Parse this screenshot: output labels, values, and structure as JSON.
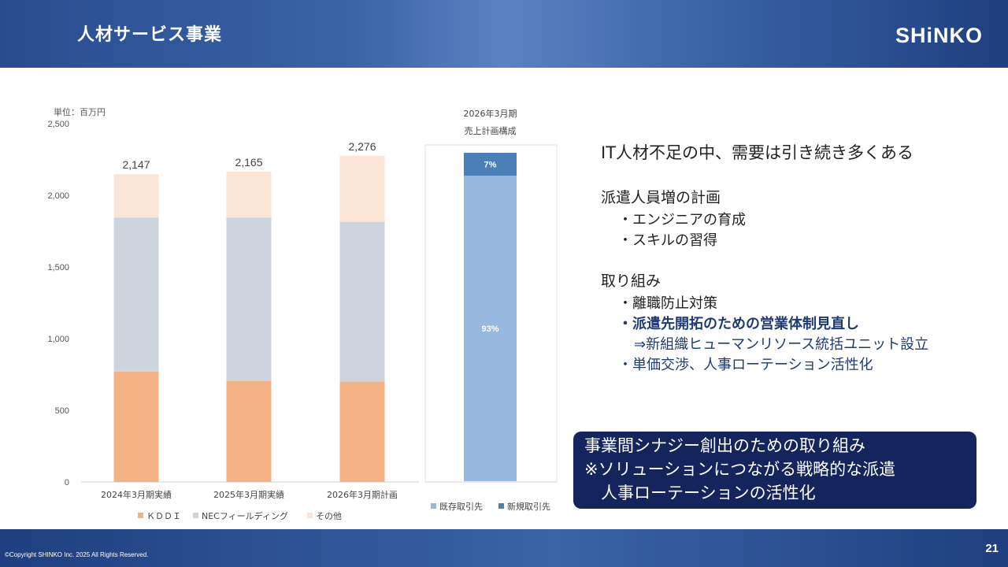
{
  "header": {
    "title": "人材サービス事業",
    "logo": "SHiNKO"
  },
  "footer": {
    "copyright": "©Copyright SHINKO Inc. 2025 All Rights Reserved.",
    "page_number": "21"
  },
  "colors": {
    "kddi": "#f4b183",
    "nec": "#cdd4de",
    "other": "#fbe5d6",
    "existing": "#97b9e0",
    "new": "#4b7fb8"
  },
  "chart_data": [
    {
      "type": "bar",
      "stacked": true,
      "unit_label": "単位：百万円",
      "categories": [
        "2024年3月期実績",
        "2025年3月期実績",
        "2026年3月期計画"
      ],
      "series": [
        {
          "name": "ＫＤＤＩ",
          "values": [
            770,
            705,
            700
          ]
        },
        {
          "name": "NECフィールディング",
          "values": [
            1075,
            1140,
            1115
          ]
        },
        {
          "name": "その他",
          "values": [
            302,
            320,
            461
          ]
        }
      ],
      "totals": [
        2147,
        2165,
        2276
      ],
      "total_labels": [
        "2,147",
        "2,165",
        "2,276"
      ],
      "yticks": [
        "0",
        "500",
        "1,000",
        "1,500",
        "2,000",
        "2,500"
      ],
      "ylim": [
        0,
        2500
      ],
      "legend_position": "bottom"
    },
    {
      "type": "bar",
      "stacked": true,
      "title": [
        "2026年3月期",
        "売上計画構成"
      ],
      "categories": [
        "2026年3月期"
      ],
      "series": [
        {
          "name": "既存取引先",
          "values": [
            93
          ],
          "label": "93%"
        },
        {
          "name": "新規取引先",
          "values": [
            7
          ],
          "label": "7%"
        }
      ],
      "legend_position": "bottom"
    }
  ],
  "right": {
    "headline": "IT人材不足の中、需要は引き続き多くある",
    "plan_heading": "派遣人員増の計画",
    "plan_items": [
      "・エンジニアの育成",
      "・スキルの習得"
    ],
    "initiatives_heading": "取り組み",
    "initiative_1": "・離職防止対策",
    "initiative_2": "・派遣先開拓のための営業体制見直し",
    "initiative_2_sub": "⇒新組織ヒューマンリソース統括ユニット設立",
    "initiative_3": "・単価交渉、人事ローテーション活性化"
  },
  "synergy": {
    "lines": [
      "事業間シナジー創出のための取り組み",
      "※ソリューションにつながる戦略的な派遣",
      "　人事ローテーションの活性化"
    ]
  }
}
